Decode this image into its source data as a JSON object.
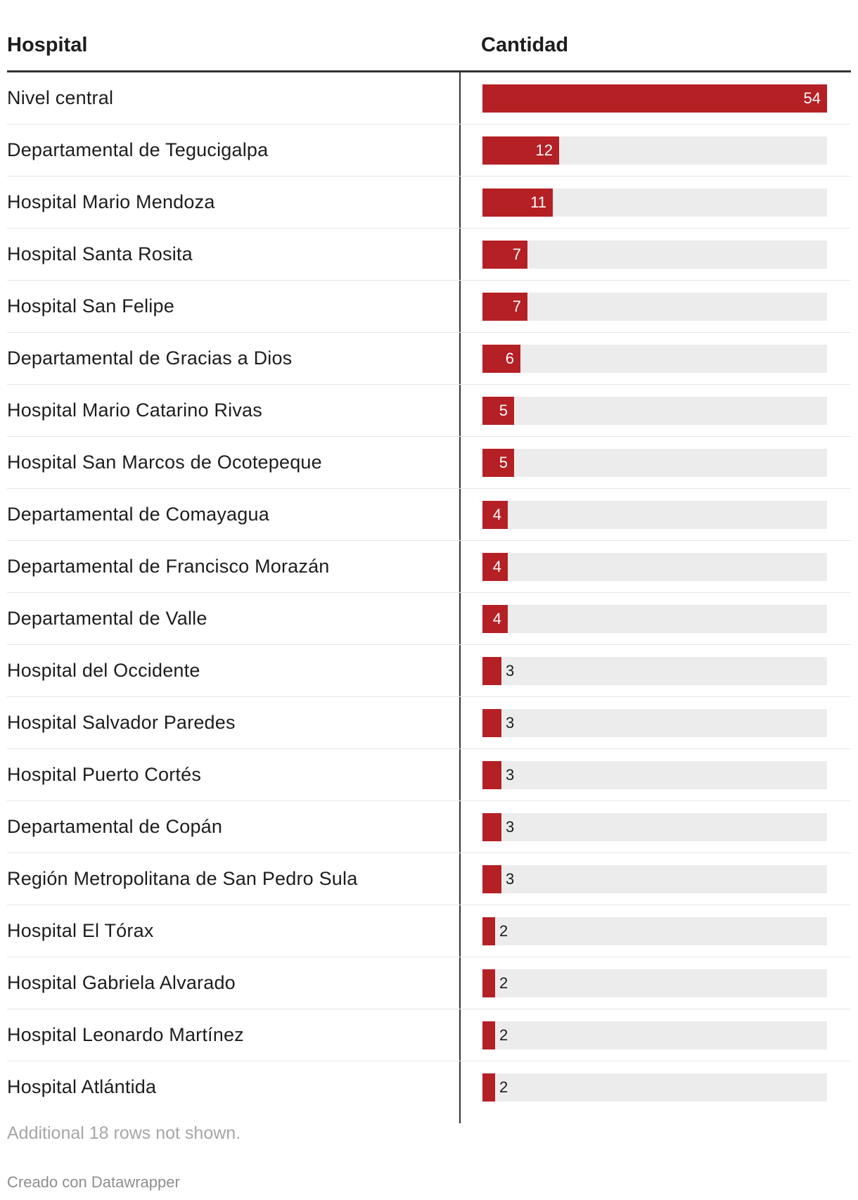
{
  "header": {
    "hospital": "Hospital",
    "cantidad": "Cantidad"
  },
  "colors": {
    "bar": "#b52025",
    "track": "#ececec",
    "text": "#1d1d1d"
  },
  "chart_data": {
    "type": "bar",
    "orientation": "horizontal",
    "columns": [
      "Hospital",
      "Cantidad"
    ],
    "xlim": [
      0,
      54
    ],
    "categories": [
      "Nivel central",
      "Departamental de Tegucigalpa",
      "Hospital Mario Mendoza",
      "Hospital Santa Rosita",
      "Hospital San Felipe",
      "Departamental de Gracias a Dios",
      "Hospital Mario Catarino Rivas",
      "Hospital San Marcos de Ocotepeque",
      "Departamental de Comayagua",
      "Departamental de Francisco Morazán",
      "Departamental de Valle",
      "Hospital del Occidente",
      "Hospital Salvador Paredes",
      "Hospital Puerto Cortés",
      "Departamental de Copán",
      "Región Metropolitana de San Pedro Sula",
      "Hospital El Tórax",
      "Hospital Gabriela Alvarado",
      "Hospital Leonardo Martínez",
      "Hospital Atlántida"
    ],
    "values": [
      54,
      12,
      11,
      7,
      7,
      6,
      5,
      5,
      4,
      4,
      4,
      3,
      3,
      3,
      3,
      3,
      2,
      2,
      2,
      2
    ]
  },
  "footer": {
    "note": "Additional 18 rows not shown.",
    "credit": "Creado con Datawrapper"
  }
}
